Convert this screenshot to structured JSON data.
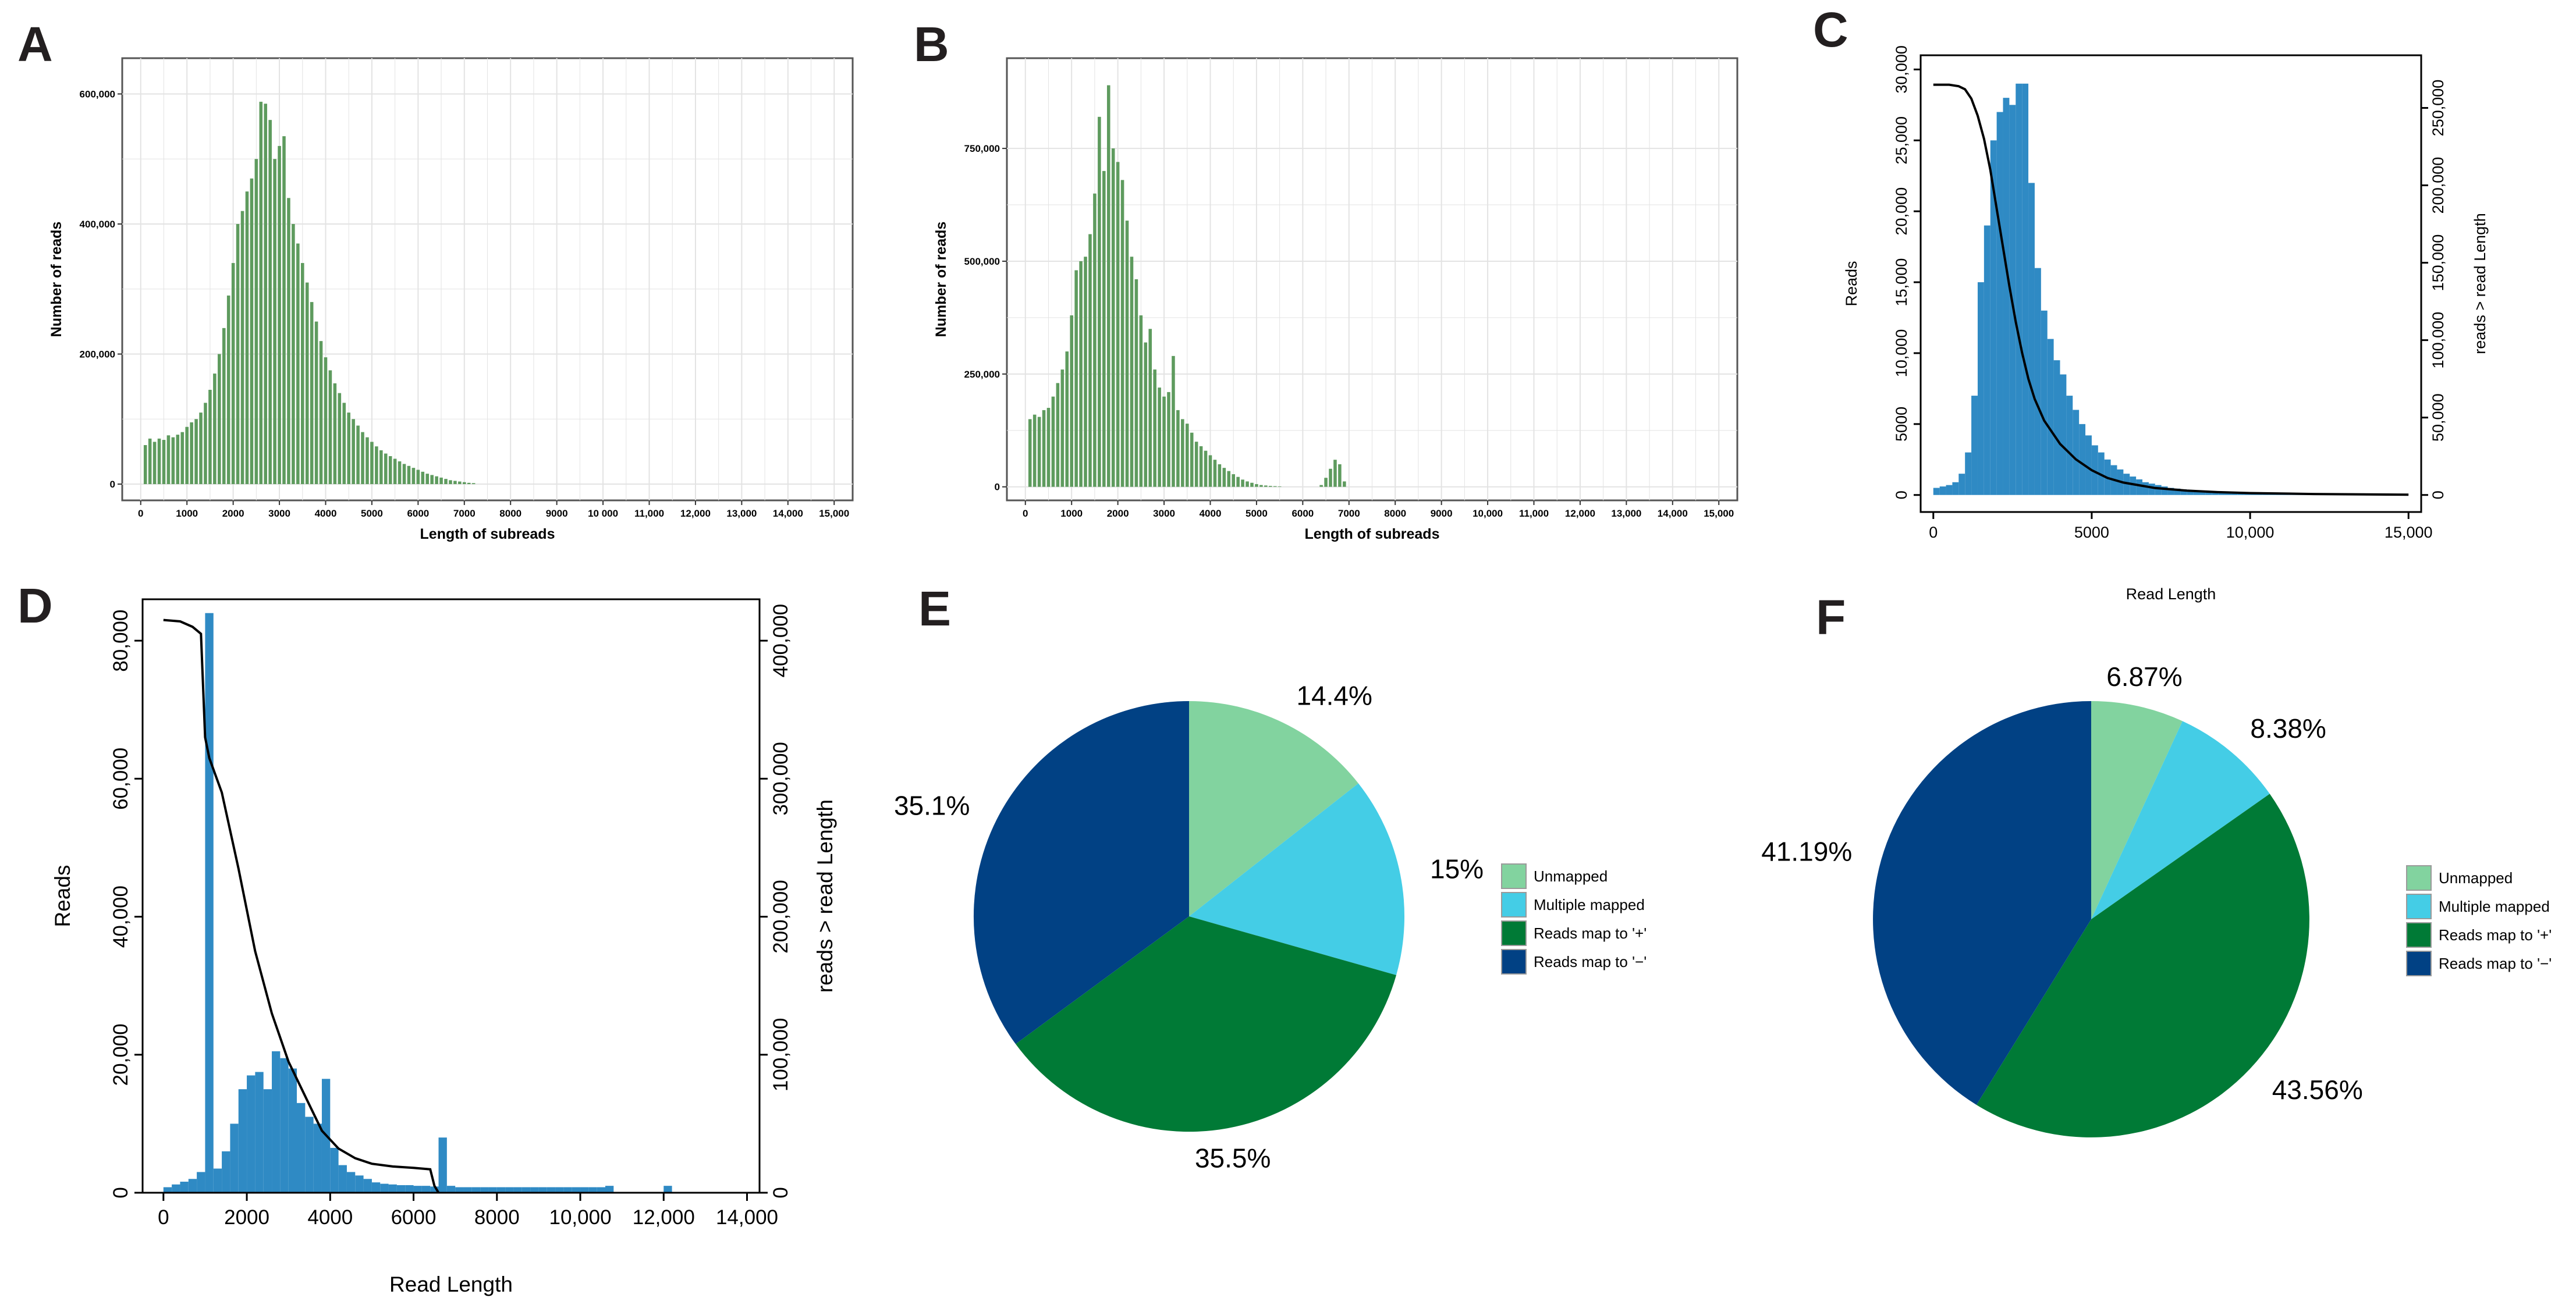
{
  "panels": {
    "A": "A",
    "B": "B",
    "C": "C",
    "D": "D",
    "E": "E",
    "F": "F"
  },
  "colors": {
    "subread_bar": "#5e9b5e",
    "read_bar": "#2f8ac4",
    "curve": "#000000",
    "unmapped": "#82d39f",
    "multiple_mapped": "#44cde6",
    "map_plus": "#007a36",
    "map_minus": "#014184",
    "grid": "#e3e3e3"
  },
  "chart_data": [
    {
      "id": "A",
      "type": "bar",
      "xlabel": "Length of subreads",
      "ylabel": "Number of reads",
      "xlim": [
        -400,
        15400
      ],
      "ylim": [
        -25000,
        655000
      ],
      "xticks": [
        0,
        1000,
        2000,
        3000,
        4000,
        5000,
        6000,
        7000,
        8000,
        9000,
        10000,
        11000,
        12000,
        13000,
        14000,
        15000
      ],
      "xtick_labels": [
        "0",
        "1000",
        "2000",
        "3000",
        "4000",
        "5000",
        "6000",
        "7000",
        "8000",
        "9000",
        "10 000",
        "11,000",
        "12,000",
        "13,000",
        "14,000",
        "15,000"
      ],
      "yticks": [
        0,
        200000,
        400000,
        600000
      ],
      "ytick_labels": [
        "0",
        "200,000",
        "400,000",
        "600,000"
      ],
      "grid": true,
      "bin_width": 100,
      "x": [
        100,
        200,
        300,
        400,
        500,
        600,
        700,
        800,
        900,
        1000,
        1100,
        1200,
        1300,
        1400,
        1500,
        1600,
        1700,
        1800,
        1900,
        2000,
        2100,
        2200,
        2300,
        2400,
        2500,
        2600,
        2700,
        2800,
        2900,
        3000,
        3100,
        3200,
        3300,
        3400,
        3500,
        3600,
        3700,
        3800,
        3900,
        4000,
        4100,
        4200,
        4300,
        4400,
        4500,
        4600,
        4700,
        4800,
        4900,
        5000,
        5100,
        5200,
        5300,
        5400,
        5500,
        5600,
        5700,
        5800,
        5900,
        6000,
        6100,
        6200,
        6300,
        6400,
        6500,
        6600,
        6700,
        6800,
        6900,
        7000,
        7100,
        7200
      ],
      "values": [
        60000,
        70000,
        65000,
        70000,
        68000,
        75000,
        72000,
        76000,
        80000,
        88000,
        95000,
        100000,
        110000,
        125000,
        145000,
        170000,
        200000,
        240000,
        290000,
        340000,
        400000,
        420000,
        450000,
        470000,
        500000,
        588000,
        585000,
        560000,
        500000,
        520000,
        535000,
        440000,
        400000,
        370000,
        340000,
        310000,
        280000,
        250000,
        220000,
        195000,
        175000,
        155000,
        140000,
        125000,
        110000,
        100000,
        90000,
        80000,
        72000,
        65000,
        58000,
        52000,
        47000,
        43000,
        39000,
        35000,
        31000,
        28000,
        25000,
        22000,
        19000,
        16000,
        14000,
        12000,
        10000,
        8000,
        6000,
        5000,
        4000,
        3000,
        2000,
        1500
      ]
    },
    {
      "id": "B",
      "type": "bar",
      "xlabel": "Length of subreads",
      "ylabel": "Number of reads",
      "xlim": [
        -400,
        15400
      ],
      "ylim": [
        -30000,
        950000
      ],
      "xticks": [
        0,
        1000,
        2000,
        3000,
        4000,
        5000,
        6000,
        7000,
        8000,
        9000,
        10000,
        11000,
        12000,
        13000,
        14000,
        15000
      ],
      "xtick_labels": [
        "0",
        "1000",
        "2000",
        "3000",
        "4000",
        "5000",
        "6000",
        "7000",
        "8000",
        "9000",
        "10,000",
        "11,000",
        "12,000",
        "13,000",
        "14,000",
        "15,000"
      ],
      "yticks": [
        0,
        250000,
        500000,
        750000
      ],
      "ytick_labels": [
        "0",
        "250,000",
        "500,000",
        "750,000"
      ],
      "grid": true,
      "bin_width": 100,
      "x": [
        100,
        200,
        300,
        400,
        500,
        600,
        700,
        800,
        900,
        1000,
        1100,
        1200,
        1300,
        1400,
        1500,
        1600,
        1700,
        1800,
        1900,
        2000,
        2100,
        2200,
        2300,
        2400,
        2500,
        2600,
        2700,
        2800,
        2900,
        3000,
        3100,
        3200,
        3300,
        3400,
        3500,
        3600,
        3700,
        3800,
        3900,
        4000,
        4100,
        4200,
        4300,
        4400,
        4500,
        4600,
        4700,
        4800,
        4900,
        5000,
        5100,
        5200,
        5300,
        5400,
        5500,
        6400,
        6500,
        6600,
        6700,
        6800,
        6900
      ],
      "values": [
        150000,
        160000,
        155000,
        170000,
        175000,
        200000,
        230000,
        260000,
        300000,
        380000,
        480000,
        500000,
        510000,
        560000,
        650000,
        820000,
        700000,
        890000,
        750000,
        720000,
        680000,
        590000,
        510000,
        460000,
        380000,
        320000,
        350000,
        260000,
        220000,
        200000,
        210000,
        290000,
        170000,
        150000,
        140000,
        120000,
        100000,
        90000,
        80000,
        70000,
        60000,
        50000,
        42000,
        35000,
        28000,
        22000,
        16000,
        12000,
        9000,
        6000,
        4000,
        3000,
        2000,
        1500,
        1000,
        4000,
        20000,
        40000,
        60000,
        50000,
        12000
      ]
    },
    {
      "id": "C",
      "type": "bar",
      "xlabel": "Read Length",
      "ylabel": "Reads",
      "y2label": "reads > read Length",
      "xlim": [
        -400,
        15400
      ],
      "ylim": [
        -1200,
        31000
      ],
      "y2lim": [
        -11000,
        284000
      ],
      "xticks": [
        0,
        5000,
        10000,
        15000
      ],
      "xtick_labels": [
        "0",
        "5000",
        "10,000",
        "15,000"
      ],
      "yticks": [
        0,
        5000,
        10000,
        15000,
        20000,
        25000,
        30000
      ],
      "ytick_labels": [
        "0",
        "5000",
        "10,000",
        "15,000",
        "20,000",
        "25,000",
        "30,000"
      ],
      "y2ticks": [
        0,
        50000,
        100000,
        150000,
        200000,
        250000
      ],
      "y2tick_labels": [
        "0",
        "50,000",
        "100,000",
        "150,000",
        "200,000",
        "250,000"
      ],
      "grid": false,
      "bin_start": 0,
      "bin_width": 200,
      "values": [
        500,
        600,
        700,
        900,
        1500,
        3000,
        7000,
        15000,
        19000,
        25000,
        27000,
        28000,
        27500,
        29000,
        29000,
        22000,
        16000,
        13000,
        11000,
        9500,
        8500,
        7000,
        6000,
        5000,
        4200,
        3500,
        3000,
        2500,
        2100,
        1800,
        1500,
        1300,
        1100,
        900,
        800,
        700,
        600,
        500,
        450,
        400,
        350,
        300,
        260,
        220,
        200,
        180,
        160,
        140,
        120,
        100,
        90,
        80,
        70,
        60,
        55,
        50,
        45,
        40,
        35,
        30,
        28,
        26,
        24,
        22,
        20,
        18,
        16,
        14,
        13,
        12,
        11,
        10,
        9,
        8,
        8
      ],
      "curve_x": [
        0,
        500,
        800,
        1000,
        1200,
        1400,
        1600,
        1800,
        2000,
        2200,
        2400,
        2600,
        2800,
        3000,
        3200,
        3500,
        4000,
        4500,
        5000,
        5500,
        6000,
        7000,
        8000,
        9000,
        10000,
        12000,
        15000
      ],
      "curve_y": [
        265000,
        265000,
        264000,
        262000,
        256000,
        245000,
        230000,
        210000,
        185000,
        160000,
        135000,
        112000,
        92000,
        75000,
        62000,
        48000,
        33000,
        23000,
        16000,
        11000,
        8000,
        4500,
        2800,
        1800,
        1200,
        600,
        200
      ]
    },
    {
      "id": "D",
      "type": "bar",
      "xlabel": "Read Length",
      "ylabel": "Reads",
      "y2label": "reads > read Length",
      "xlim": [
        -500,
        14300
      ],
      "ylim": [
        0,
        86000
      ],
      "y2lim": [
        0,
        430000
      ],
      "xticks": [
        0,
        2000,
        4000,
        6000,
        8000,
        10000,
        12000,
        14000
      ],
      "xtick_labels": [
        "0",
        "2000",
        "4000",
        "6000",
        "8000",
        "10,000",
        "12,000",
        "14,000"
      ],
      "yticks": [
        0,
        20000,
        40000,
        60000,
        80000
      ],
      "ytick_labels": [
        "0",
        "20,000",
        "40,000",
        "60,000",
        "80,000"
      ],
      "y2ticks": [
        0,
        100000,
        200000,
        300000,
        400000
      ],
      "y2tick_labels": [
        "0",
        "100,000",
        "200,000",
        "300,000",
        "400,000"
      ],
      "grid": false,
      "bin_start": 0,
      "bin_width": 200,
      "values": [
        800,
        1200,
        1600,
        2000,
        3000,
        84000,
        3500,
        6000,
        10000,
        15000,
        17000,
        17500,
        15000,
        20500,
        19500,
        18000,
        13000,
        11000,
        10000,
        16500,
        6500,
        4000,
        3000,
        2500,
        2000,
        1500,
        1300,
        1200,
        1100,
        1100,
        1000,
        1000,
        900,
        8000,
        1000,
        800,
        800,
        800,
        800,
        800,
        800,
        800,
        800,
        800,
        800,
        800,
        800,
        800,
        800,
        800,
        800,
        800,
        800,
        1000,
        0,
        0,
        0,
        0,
        0,
        0,
        1000
      ],
      "curve_x": [
        0,
        400,
        700,
        900,
        1000,
        1100,
        1400,
        1800,
        2200,
        2600,
        3000,
        3400,
        3800,
        4200,
        4600,
        5000,
        5500,
        6000,
        6400,
        6500,
        6600
      ],
      "curve_y": [
        415000,
        414000,
        410000,
        405000,
        330000,
        315000,
        290000,
        235000,
        175000,
        130000,
        95000,
        70000,
        45000,
        32000,
        25000,
        21000,
        19000,
        18000,
        17000,
        5000,
        0
      ]
    },
    {
      "id": "E",
      "type": "pie",
      "labels": [
        "Unmapped",
        "Multiple mapped",
        "Reads map to '+'",
        "Reads map to '−'"
      ],
      "values": [
        14.4,
        15,
        35.5,
        35.1
      ],
      "value_labels": [
        "14.4%",
        "15%",
        "35.5%",
        "35.1%"
      ],
      "legend_position": "right"
    },
    {
      "id": "F",
      "type": "pie",
      "labels": [
        "Unmapped",
        "Multiple mapped",
        "Reads map to '+'",
        "Reads map to '−'"
      ],
      "values": [
        6.87,
        8.38,
        43.56,
        41.19
      ],
      "value_labels": [
        "6.87%",
        "8.38%",
        "43.56%",
        "41.19%"
      ],
      "legend_position": "right"
    }
  ]
}
